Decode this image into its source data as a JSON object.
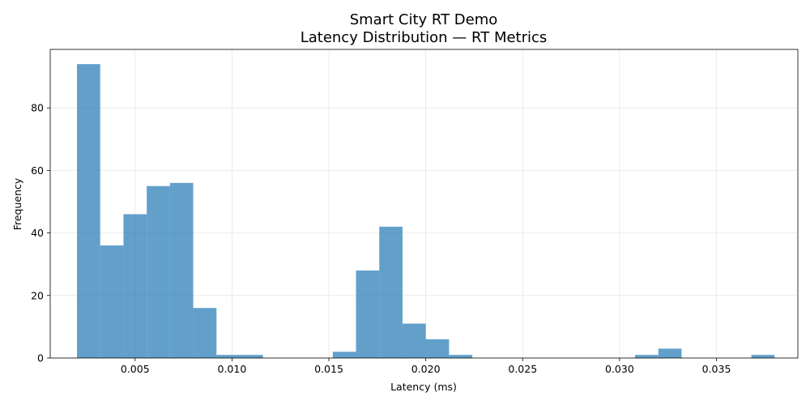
{
  "chart_data": {
    "type": "bar",
    "title": "Smart City RT Demo",
    "subtitle": "Latency Distribution — RT Metrics",
    "xlabel": "Latency (ms)",
    "ylabel": "Frequency",
    "xlim": [
      0.00062,
      0.0392
    ],
    "ylim": [
      0,
      98.7
    ],
    "grid": true,
    "bar_color": "#1f77b4",
    "bin_edges": [
      0.002,
      0.0032,
      0.0044,
      0.0056,
      0.0068,
      0.008,
      0.0092,
      0.0104,
      0.0116,
      0.0128,
      0.014,
      0.0152,
      0.0164,
      0.0176,
      0.0188,
      0.02,
      0.0212,
      0.0224,
      0.0236,
      0.0248,
      0.026,
      0.0272,
      0.0284,
      0.0296,
      0.0308,
      0.032,
      0.0332,
      0.0344,
      0.0356,
      0.0368,
      0.038
    ],
    "values": [
      94,
      36,
      46,
      55,
      56,
      16,
      1,
      1,
      0,
      0,
      0,
      2,
      28,
      42,
      11,
      6,
      1,
      0,
      0,
      0,
      0,
      0,
      0,
      0,
      1,
      3,
      0,
      0,
      0,
      1
    ],
    "x_ticks": [
      0.005,
      0.01,
      0.015,
      0.02,
      0.025,
      0.03,
      0.035
    ],
    "x_tick_labels": [
      "0.005",
      "0.010",
      "0.015",
      "0.020",
      "0.025",
      "0.030",
      "0.035"
    ],
    "y_ticks": [
      0,
      20,
      40,
      60,
      80
    ],
    "y_tick_labels": [
      "0",
      "20",
      "40",
      "60",
      "80"
    ]
  }
}
